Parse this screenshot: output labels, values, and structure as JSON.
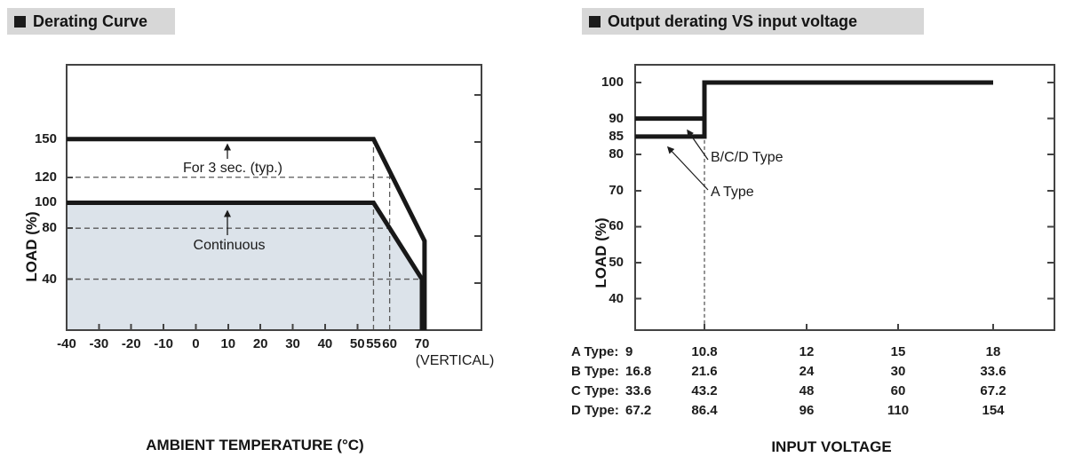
{
  "chart_data": [
    {
      "type": "line",
      "title": "Derating Curve",
      "xlabel": "AMBIENT TEMPERATURE (°C)",
      "ylabel": "LOAD (%)",
      "xlim": [
        -40,
        88
      ],
      "ylim": [
        0,
        208
      ],
      "x_ticks": [
        -40,
        -30,
        -20,
        -10,
        0,
        10,
        20,
        30,
        40,
        50,
        55,
        60,
        70
      ],
      "y_ticks": [
        150,
        120,
        100,
        80,
        40
      ],
      "legend_position": "none",
      "grid": "dashed-guides",
      "series": [
        {
          "name": "For 3 sec. (typ.)",
          "points": [
            [
              -40,
              150
            ],
            [
              55,
              150
            ],
            [
              70.8,
              70
            ],
            [
              70.8,
              0
            ]
          ]
        },
        {
          "name": "Continuous",
          "points": [
            [
              -40,
              100
            ],
            [
              55,
              100
            ],
            [
              70,
              40
            ],
            [
              70,
              0
            ]
          ],
          "fill": "#dce3ea"
        }
      ],
      "dashed_h": [
        {
          "y": 120,
          "x1": -40,
          "x2": 60.7
        },
        {
          "y": 80,
          "x1": -40,
          "x2": 60
        },
        {
          "y": 40,
          "x1": -40,
          "x2": 70
        }
      ],
      "dashed_v": [
        {
          "x": 55,
          "top": 150
        },
        {
          "x": 60,
          "top": 122.5
        }
      ],
      "annotations": [
        {
          "text": "For 3 sec. (typ.)"
        },
        {
          "text": "Continuous"
        }
      ],
      "corner_label": "(VERTICAL)"
    },
    {
      "type": "line",
      "title": "Output derating VS input voltage",
      "xlabel": "INPUT VOLTAGE",
      "ylabel": "LOAD (%)",
      "ylim": [
        31,
        105
      ],
      "y_ticks": [
        100,
        90,
        85,
        80,
        70,
        60,
        50,
        40
      ],
      "legend_position": "none",
      "x_table": {
        "rows": [
          {
            "label": "A Type:",
            "values": [
              "9",
              "10.8",
              "12",
              "15",
              "18"
            ]
          },
          {
            "label": "B Type:",
            "values": [
              "16.8",
              "21.6",
              "24",
              "30",
              "33.6"
            ]
          },
          {
            "label": "C Type:",
            "values": [
              "33.6",
              "43.2",
              "48",
              "60",
              "67.2"
            ]
          },
          {
            "label": "D Type:",
            "values": [
              "67.2",
              "86.4",
              "96",
              "110",
              "154"
            ]
          }
        ]
      },
      "series": [
        {
          "name": "B/C/D Type",
          "points_col": [
            [
              0,
              90
            ],
            [
              1,
              90
            ],
            [
              1,
              100
            ],
            [
              4,
              100
            ]
          ]
        },
        {
          "name": "A Type",
          "points_col": [
            [
              0,
              85
            ],
            [
              1,
              85
            ],
            [
              1,
              100
            ]
          ]
        }
      ],
      "dashed_v": [
        {
          "col": 1,
          "top": 85
        }
      ],
      "annotations": [
        {
          "text": "B/C/D Type"
        },
        {
          "text": "A Type"
        }
      ]
    }
  ]
}
